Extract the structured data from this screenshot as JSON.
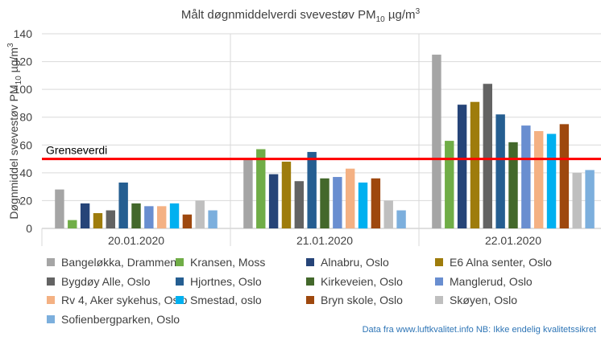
{
  "chart_data": {
    "type": "bar",
    "title": "Målt døgnmiddelverdi svevestøv PM",
    "title_sub": "10",
    "title_unit": " µg/m",
    "title_sup": "3",
    "ylabel_main": "Døgnmiddel svevestøv PM",
    "ylabel_sub": "10",
    "ylabel_unit": " µg/m",
    "ylabel_sup": "3",
    "ylim": [
      0,
      140
    ],
    "yticks": [
      0,
      20,
      40,
      60,
      80,
      100,
      120,
      140
    ],
    "grid": true,
    "legend_position": "bottom",
    "categories": [
      "20.01.2020",
      "21.01.2020",
      "22.01.2020"
    ],
    "threshold": {
      "label": "Grenseverdi",
      "value": 50,
      "color": "#ff0000"
    },
    "series": [
      {
        "name": "Bangeløkka, Drammen",
        "color": "#a5a5a5",
        "values": [
          28,
          50,
          125
        ]
      },
      {
        "name": "Kransen, Moss",
        "color": "#70ad47",
        "values": [
          6,
          57,
          63
        ]
      },
      {
        "name": "Alnabru, Oslo",
        "color": "#264478",
        "values": [
          18,
          39,
          89
        ]
      },
      {
        "name": "E6 Alna senter, Oslo",
        "color": "#9e7c0c",
        "values": [
          11,
          48,
          91
        ]
      },
      {
        "name": "Bygdøy Alle, Oslo",
        "color": "#636363",
        "values": [
          13,
          34,
          104
        ]
      },
      {
        "name": "Hjortnes, Oslo",
        "color": "#255e91",
        "values": [
          33,
          55,
          82
        ]
      },
      {
        "name": "Kirkeveien, Oslo",
        "color": "#43682b",
        "values": [
          18,
          36,
          62
        ]
      },
      {
        "name": "Manglerud, Oslo",
        "color": "#698ed0",
        "values": [
          16,
          37,
          74
        ]
      },
      {
        "name": "Rv 4, Aker sykehus, Oslo",
        "color": "#f4b183",
        "values": [
          16,
          43,
          70
        ]
      },
      {
        "name": "Smestad, oslo",
        "color": "#00b0f0",
        "values": [
          18,
          33,
          68
        ]
      },
      {
        "name": "Bryn skole, Oslo",
        "color": "#9e480e",
        "values": [
          10,
          36,
          75
        ]
      },
      {
        "name": "Skøyen, Oslo",
        "color": "#bfbfbf",
        "values": [
          20,
          20,
          40
        ]
      },
      {
        "name": "Sofienbergparken, Oslo",
        "color": "#7cafdd",
        "values": [
          13,
          13,
          42
        ]
      }
    ]
  },
  "footer": {
    "source": "Data fra www.luftkvalitet.info NB: Ikke endelig kvalitetssikret"
  }
}
